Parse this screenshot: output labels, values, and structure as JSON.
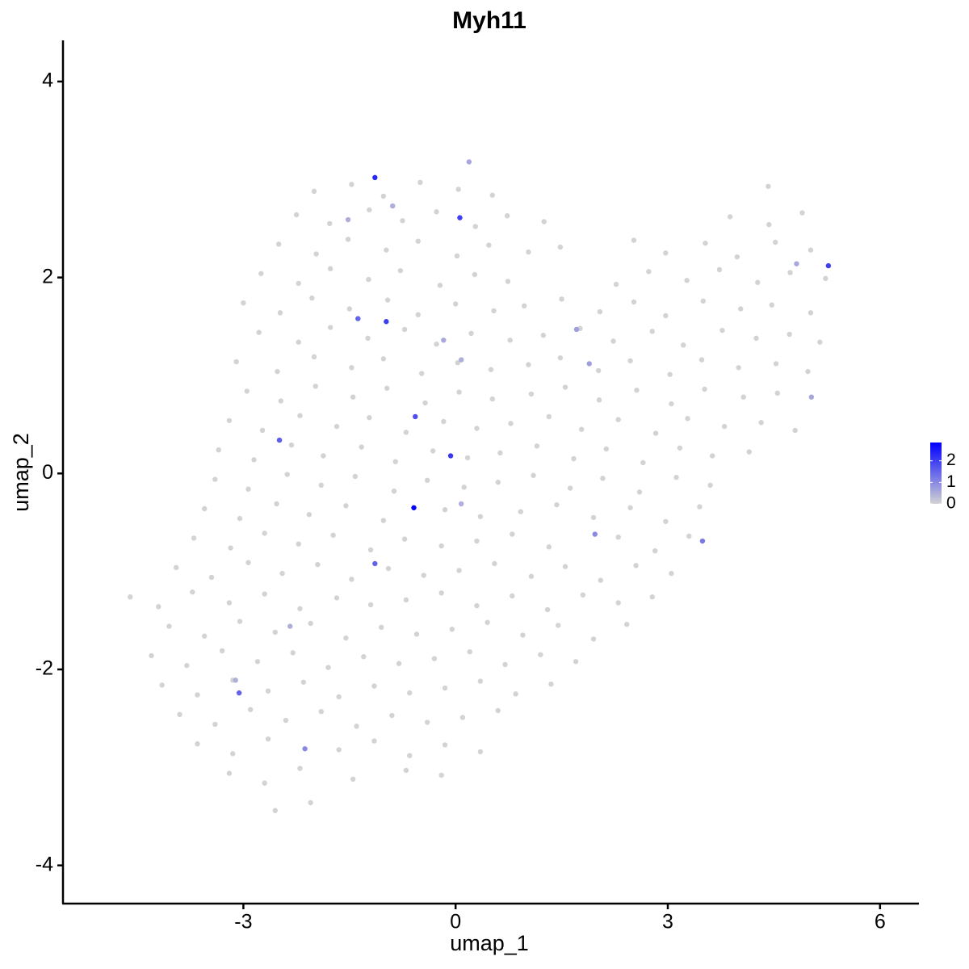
{
  "chart_data": {
    "type": "scatter",
    "title": "Myh11",
    "x_label": "umap_1",
    "y_label": "umap_2",
    "xlim": [
      -5.55,
      6.55
    ],
    "ylim": [
      -4.39,
      4.42
    ],
    "xticks": [
      -3,
      0,
      3,
      6
    ],
    "yticks": [
      -4,
      -2,
      0,
      2,
      4
    ],
    "colorbar": {
      "lim": [
        0,
        2.85
      ],
      "ticks": [
        0,
        1,
        2
      ],
      "low": "#d3d3d3",
      "high": "#0000ff"
    },
    "points": [
      [
        -2.0,
        2.88,
        0
      ],
      [
        -1.47,
        2.95,
        0
      ],
      [
        -1.02,
        2.83,
        0
      ],
      [
        -0.5,
        2.97,
        0
      ],
      [
        0.04,
        2.9,
        0
      ],
      [
        0.52,
        2.84,
        0
      ],
      [
        4.42,
        2.93,
        0
      ],
      [
        -2.25,
        2.64,
        0
      ],
      [
        -1.78,
        2.55,
        0
      ],
      [
        -1.22,
        2.69,
        0
      ],
      [
        -0.75,
        2.58,
        0
      ],
      [
        -0.27,
        2.67,
        0
      ],
      [
        0.28,
        2.52,
        0
      ],
      [
        0.73,
        2.63,
        0
      ],
      [
        1.25,
        2.57,
        0
      ],
      [
        3.88,
        2.62,
        0
      ],
      [
        4.43,
        2.54,
        0
      ],
      [
        4.9,
        2.66,
        0
      ],
      [
        -2.5,
        2.34,
        0
      ],
      [
        -1.97,
        2.24,
        0
      ],
      [
        -1.52,
        2.39,
        0
      ],
      [
        -0.98,
        2.28,
        0
      ],
      [
        -0.53,
        2.37,
        0
      ],
      [
        0.02,
        2.22,
        0
      ],
      [
        0.47,
        2.33,
        0
      ],
      [
        1.03,
        2.26,
        0
      ],
      [
        1.48,
        2.31,
        0
      ],
      [
        2.52,
        2.38,
        0
      ],
      [
        2.97,
        2.25,
        0
      ],
      [
        3.53,
        2.35,
        0
      ],
      [
        3.98,
        2.21,
        0
      ],
      [
        4.52,
        2.36,
        0
      ],
      [
        5.02,
        2.28,
        0
      ],
      [
        -2.75,
        2.04,
        0
      ],
      [
        -2.22,
        1.94,
        0
      ],
      [
        -1.77,
        2.09,
        0
      ],
      [
        -1.23,
        1.98,
        0
      ],
      [
        -0.78,
        2.07,
        0
      ],
      [
        -0.22,
        1.92,
        0
      ],
      [
        0.27,
        2.03,
        0
      ],
      [
        0.74,
        1.96,
        0
      ],
      [
        2.27,
        1.93,
        0
      ],
      [
        2.73,
        2.06,
        0
      ],
      [
        3.27,
        1.97,
        0
      ],
      [
        3.73,
        2.08,
        0
      ],
      [
        4.27,
        1.95,
        0
      ],
      [
        4.73,
        2.05,
        0
      ],
      [
        5.23,
        1.99,
        0
      ],
      [
        -3.0,
        1.74,
        0
      ],
      [
        -2.48,
        1.64,
        0
      ],
      [
        -2.03,
        1.79,
        0
      ],
      [
        -1.5,
        1.68,
        0
      ],
      [
        -0.96,
        1.77,
        0
      ],
      [
        -0.53,
        1.62,
        0
      ],
      [
        0.0,
        1.73,
        0
      ],
      [
        0.54,
        1.66,
        0
      ],
      [
        0.97,
        1.71,
        0
      ],
      [
        1.5,
        1.78,
        0
      ],
      [
        2.04,
        1.65,
        0
      ],
      [
        2.52,
        1.75,
        0
      ],
      [
        2.97,
        1.61,
        0
      ],
      [
        3.5,
        1.76,
        0
      ],
      [
        4.03,
        1.68,
        0
      ],
      [
        4.47,
        1.72,
        0
      ],
      [
        5.02,
        1.64,
        0
      ],
      [
        -2.78,
        1.44,
        0
      ],
      [
        -2.22,
        1.34,
        0
      ],
      [
        -1.77,
        1.49,
        0
      ],
      [
        -1.24,
        1.38,
        0
      ],
      [
        -0.72,
        1.47,
        0
      ],
      [
        -0.27,
        1.32,
        0
      ],
      [
        0.22,
        1.43,
        0
      ],
      [
        0.77,
        1.36,
        0
      ],
      [
        1.24,
        1.41,
        0
      ],
      [
        1.76,
        1.48,
        0
      ],
      [
        2.23,
        1.35,
        0
      ],
      [
        2.78,
        1.45,
        0
      ],
      [
        3.22,
        1.31,
        0
      ],
      [
        3.77,
        1.46,
        0
      ],
      [
        4.25,
        1.38,
        0
      ],
      [
        4.72,
        1.42,
        0
      ],
      [
        5.15,
        1.34,
        0
      ],
      [
        -3.1,
        1.14,
        0
      ],
      [
        -2.52,
        1.04,
        0
      ],
      [
        -2.0,
        1.19,
        0
      ],
      [
        -1.47,
        1.08,
        0
      ],
      [
        -1.02,
        1.17,
        0
      ],
      [
        -0.48,
        1.02,
        0
      ],
      [
        0.03,
        1.13,
        0
      ],
      [
        0.5,
        1.06,
        0
      ],
      [
        1.03,
        1.11,
        0
      ],
      [
        1.48,
        1.18,
        0
      ],
      [
        2.02,
        1.05,
        0
      ],
      [
        2.47,
        1.15,
        0
      ],
      [
        3.03,
        1.01,
        0
      ],
      [
        3.48,
        1.16,
        0
      ],
      [
        4.0,
        1.08,
        0
      ],
      [
        4.53,
        1.12,
        0
      ],
      [
        4.98,
        1.04,
        0
      ],
      [
        -2.95,
        0.84,
        0
      ],
      [
        -2.47,
        0.74,
        0
      ],
      [
        -1.98,
        0.89,
        0
      ],
      [
        -1.45,
        0.78,
        0
      ],
      [
        -0.97,
        0.87,
        0
      ],
      [
        -0.43,
        0.72,
        0
      ],
      [
        0.05,
        0.83,
        0
      ],
      [
        0.52,
        0.76,
        0
      ],
      [
        1.07,
        0.81,
        0
      ],
      [
        1.55,
        0.88,
        0
      ],
      [
        2.03,
        0.75,
        0
      ],
      [
        2.56,
        0.85,
        0
      ],
      [
        3.05,
        0.71,
        0
      ],
      [
        3.52,
        0.86,
        0
      ],
      [
        4.07,
        0.78,
        0
      ],
      [
        4.55,
        0.82,
        0
      ],
      [
        -3.2,
        0.54,
        0
      ],
      [
        -2.73,
        0.44,
        0
      ],
      [
        -2.2,
        0.59,
        0
      ],
      [
        -1.68,
        0.48,
        0
      ],
      [
        -1.22,
        0.57,
        0
      ],
      [
        -0.7,
        0.42,
        0
      ],
      [
        -0.17,
        0.53,
        0
      ],
      [
        0.3,
        0.46,
        0
      ],
      [
        0.78,
        0.51,
        0
      ],
      [
        1.32,
        0.58,
        0
      ],
      [
        1.78,
        0.45,
        0
      ],
      [
        2.3,
        0.55,
        0
      ],
      [
        2.83,
        0.41,
        0
      ],
      [
        3.28,
        0.56,
        0
      ],
      [
        3.8,
        0.48,
        0
      ],
      [
        4.32,
        0.52,
        0
      ],
      [
        4.8,
        0.44,
        0
      ],
      [
        -3.35,
        0.24,
        0
      ],
      [
        -2.85,
        0.14,
        0
      ],
      [
        -2.32,
        0.29,
        0
      ],
      [
        -1.87,
        0.18,
        0
      ],
      [
        -1.33,
        0.27,
        0
      ],
      [
        -0.85,
        0.12,
        0
      ],
      [
        -0.32,
        0.23,
        0
      ],
      [
        0.17,
        0.16,
        0
      ],
      [
        0.63,
        0.21,
        0
      ],
      [
        1.15,
        0.28,
        0
      ],
      [
        1.67,
        0.15,
        0
      ],
      [
        2.13,
        0.25,
        0
      ],
      [
        2.65,
        0.11,
        0
      ],
      [
        3.17,
        0.26,
        0
      ],
      [
        3.63,
        0.18,
        0
      ],
      [
        4.15,
        0.22,
        0
      ],
      [
        -3.4,
        -0.06,
        0
      ],
      [
        -2.93,
        -0.16,
        0
      ],
      [
        -2.38,
        -0.01,
        0
      ],
      [
        -1.9,
        -0.12,
        0
      ],
      [
        -1.42,
        -0.03,
        0
      ],
      [
        -0.87,
        -0.18,
        0
      ],
      [
        -0.4,
        -0.07,
        0
      ],
      [
        0.12,
        -0.14,
        0
      ],
      [
        0.6,
        -0.09,
        0
      ],
      [
        1.1,
        -0.02,
        0
      ],
      [
        1.62,
        -0.15,
        0
      ],
      [
        2.08,
        -0.05,
        0
      ],
      [
        2.6,
        -0.19,
        0
      ],
      [
        3.12,
        -0.04,
        0
      ],
      [
        3.6,
        -0.12,
        0
      ],
      [
        -3.55,
        -0.36,
        0
      ],
      [
        -3.05,
        -0.46,
        0
      ],
      [
        -2.53,
        -0.31,
        0
      ],
      [
        -2.07,
        -0.42,
        0
      ],
      [
        -1.55,
        -0.33,
        0
      ],
      [
        -1.02,
        -0.48,
        0
      ],
      [
        -0.15,
        -0.37,
        0
      ],
      [
        0.35,
        -0.44,
        0
      ],
      [
        0.92,
        -0.39,
        0
      ],
      [
        1.43,
        -0.32,
        0
      ],
      [
        1.95,
        -0.45,
        0
      ],
      [
        2.47,
        -0.35,
        0
      ],
      [
        2.97,
        -0.49,
        0
      ],
      [
        3.45,
        -0.34,
        0
      ],
      [
        -3.7,
        -0.66,
        0
      ],
      [
        -3.18,
        -0.76,
        0
      ],
      [
        -2.7,
        -0.61,
        0
      ],
      [
        -2.22,
        -0.72,
        0
      ],
      [
        -1.73,
        -0.63,
        0
      ],
      [
        -1.2,
        -0.78,
        0
      ],
      [
        -0.72,
        -0.67,
        0
      ],
      [
        -0.2,
        -0.74,
        0
      ],
      [
        0.3,
        -0.69,
        0
      ],
      [
        0.8,
        -0.62,
        0
      ],
      [
        1.32,
        -0.75,
        0
      ],
      [
        2.3,
        -0.65,
        0
      ],
      [
        2.82,
        -0.79,
        0
      ],
      [
        3.3,
        -0.64,
        0
      ],
      [
        -3.95,
        -0.96,
        0
      ],
      [
        -3.45,
        -1.06,
        0
      ],
      [
        -2.93,
        -0.91,
        0
      ],
      [
        -2.45,
        -1.02,
        0
      ],
      [
        -1.95,
        -0.93,
        0
      ],
      [
        -1.47,
        -1.08,
        0
      ],
      [
        -0.95,
        -0.97,
        0
      ],
      [
        -0.45,
        -1.04,
        0
      ],
      [
        0.05,
        -0.99,
        0
      ],
      [
        0.55,
        -0.92,
        0
      ],
      [
        1.07,
        -1.05,
        0
      ],
      [
        1.55,
        -0.95,
        0
      ],
      [
        2.05,
        -1.09,
        0
      ],
      [
        2.55,
        -0.94,
        0
      ],
      [
        3.05,
        -1.02,
        0
      ],
      [
        -4.6,
        -1.26,
        0
      ],
      [
        -4.2,
        -1.36,
        0
      ],
      [
        -3.72,
        -1.21,
        0
      ],
      [
        -3.2,
        -1.32,
        0
      ],
      [
        -2.7,
        -1.23,
        0
      ],
      [
        -2.2,
        -1.38,
        0
      ],
      [
        -1.68,
        -1.27,
        0
      ],
      [
        -1.2,
        -1.34,
        0
      ],
      [
        -0.7,
        -1.29,
        0
      ],
      [
        -0.2,
        -1.22,
        0
      ],
      [
        0.3,
        -1.35,
        0
      ],
      [
        0.8,
        -1.25,
        0
      ],
      [
        1.3,
        -1.39,
        0
      ],
      [
        1.8,
        -1.24,
        0
      ],
      [
        2.3,
        -1.32,
        0
      ],
      [
        2.78,
        -1.26,
        0
      ],
      [
        -4.05,
        -1.56,
        0
      ],
      [
        -3.55,
        -1.66,
        0
      ],
      [
        -3.05,
        -1.51,
        0
      ],
      [
        -2.55,
        -1.62,
        0
      ],
      [
        -2.05,
        -1.53,
        0
      ],
      [
        -1.55,
        -1.68,
        0
      ],
      [
        -1.05,
        -1.57,
        0
      ],
      [
        -0.55,
        -1.64,
        0
      ],
      [
        -0.05,
        -1.59,
        0
      ],
      [
        0.45,
        -1.52,
        0
      ],
      [
        0.95,
        -1.65,
        0
      ],
      [
        1.45,
        -1.55,
        0
      ],
      [
        1.95,
        -1.69,
        0
      ],
      [
        2.42,
        -1.54,
        0
      ],
      [
        -4.3,
        -1.86,
        0
      ],
      [
        -3.8,
        -1.96,
        0
      ],
      [
        -3.3,
        -1.81,
        0
      ],
      [
        -2.8,
        -1.92,
        0
      ],
      [
        -2.3,
        -1.83,
        0
      ],
      [
        -1.8,
        -1.98,
        0
      ],
      [
        -1.3,
        -1.87,
        0
      ],
      [
        -0.8,
        -1.94,
        0
      ],
      [
        -0.3,
        -1.89,
        0
      ],
      [
        0.2,
        -1.82,
        0
      ],
      [
        0.7,
        -1.95,
        0
      ],
      [
        1.2,
        -1.85,
        0
      ],
      [
        1.7,
        -1.92,
        0
      ],
      [
        -4.15,
        -2.16,
        0
      ],
      [
        -3.65,
        -2.26,
        0
      ],
      [
        -3.15,
        -2.11,
        0
      ],
      [
        -2.65,
        -2.22,
        0
      ],
      [
        -2.15,
        -2.13,
        0
      ],
      [
        -1.65,
        -2.28,
        0
      ],
      [
        -1.15,
        -2.17,
        0
      ],
      [
        -0.65,
        -2.24,
        0
      ],
      [
        -0.15,
        -2.19,
        0
      ],
      [
        0.35,
        -2.12,
        0
      ],
      [
        0.85,
        -2.25,
        0
      ],
      [
        1.35,
        -2.15,
        0
      ],
      [
        -3.9,
        -2.46,
        0
      ],
      [
        -3.4,
        -2.56,
        0
      ],
      [
        -2.9,
        -2.41,
        0
      ],
      [
        -2.4,
        -2.52,
        0
      ],
      [
        -1.9,
        -2.43,
        0
      ],
      [
        -1.4,
        -2.58,
        0
      ],
      [
        -0.9,
        -2.47,
        0
      ],
      [
        -0.4,
        -2.54,
        0
      ],
      [
        0.1,
        -2.49,
        0
      ],
      [
        0.6,
        -2.42,
        0
      ],
      [
        -3.65,
        -2.76,
        0
      ],
      [
        -3.15,
        -2.86,
        0
      ],
      [
        -2.65,
        -2.71,
        0
      ],
      [
        -1.65,
        -2.82,
        0
      ],
      [
        -1.15,
        -2.73,
        0
      ],
      [
        -0.65,
        -2.88,
        0
      ],
      [
        -0.15,
        -2.77,
        0
      ],
      [
        0.35,
        -2.84,
        0
      ],
      [
        -3.2,
        -3.06,
        0
      ],
      [
        -2.7,
        -3.16,
        0
      ],
      [
        -2.2,
        -3.01,
        0
      ],
      [
        -1.45,
        -3.12,
        0
      ],
      [
        -0.7,
        -3.03,
        0
      ],
      [
        -0.2,
        -3.08,
        0
      ],
      [
        -2.55,
        -3.44,
        0
      ],
      [
        -2.05,
        -3.36,
        0
      ],
      [
        0.19,
        3.18,
        0.6
      ],
      [
        -0.89,
        2.73,
        0.5
      ],
      [
        -1.52,
        2.59,
        0.5
      ],
      [
        -0.17,
        1.36,
        0.6
      ],
      [
        0.08,
        1.16,
        0.5
      ],
      [
        1.71,
        1.47,
        0.7
      ],
      [
        1.89,
        1.12,
        0.7
      ],
      [
        4.82,
        2.14,
        0.6
      ],
      [
        5.03,
        0.78,
        0.6
      ],
      [
        0.08,
        -0.31,
        0.5
      ],
      [
        -2.34,
        -1.56,
        0.5
      ],
      [
        -3.11,
        -2.11,
        0.5
      ],
      [
        1.97,
        -0.62,
        1.0
      ],
      [
        -2.13,
        -2.81,
        1.0
      ],
      [
        3.49,
        -0.69,
        1.2
      ],
      [
        -1.14,
        -0.92,
        1.5
      ],
      [
        -3.06,
        -2.24,
        1.5
      ],
      [
        -1.38,
        1.58,
        1.5
      ],
      [
        -2.49,
        0.34,
        1.6
      ],
      [
        -0.57,
        0.58,
        1.8
      ],
      [
        -0.98,
        1.55,
        2.0
      ],
      [
        0.06,
        2.61,
        2.0
      ],
      [
        5.27,
        2.12,
        2.0
      ],
      [
        -0.07,
        0.18,
        2.1
      ],
      [
        -1.14,
        3.02,
        2.3
      ],
      [
        -0.59,
        -0.35,
        2.8
      ]
    ]
  }
}
